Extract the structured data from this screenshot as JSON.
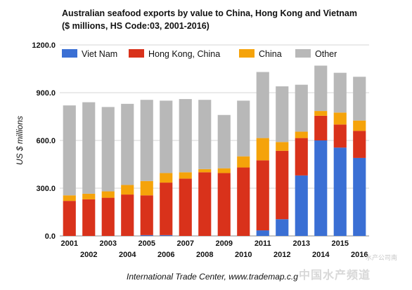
{
  "title": "Australian seafood exports by value to China, Hong Kong and Vietnam ($ millions, HS Code:03, 2001-2016)",
  "source": "International Trade Center, www.trademap.c.g",
  "watermark": "水产公司南",
  "watermark2": "中国水产频道",
  "chart_data": {
    "type": "bar",
    "stacked": true,
    "title": "Australian seafood exports by value to China, Hong Kong and Vietnam ($ millions, HS Code:03, 2001-2016)",
    "ylabel": "US $ millions",
    "xlabel": "",
    "ylim": [
      0,
      1200
    ],
    "yticks": [
      "0.0",
      "300.0",
      "600.0",
      "900.0",
      "1200.0"
    ],
    "grid": true,
    "legend_position": "top",
    "categories": [
      "2001",
      "2002",
      "2003",
      "2004",
      "2005",
      "2006",
      "2007",
      "2008",
      "2009",
      "2010",
      "2011",
      "2012",
      "2013",
      "2014",
      "2015",
      "2016"
    ],
    "series": [
      {
        "name": "Viet Nam",
        "color": "#3a6fd4",
        "values": [
          0,
          0,
          0,
          0,
          5,
          5,
          0,
          0,
          0,
          0,
          35,
          105,
          380,
          600,
          555,
          490
        ]
      },
      {
        "name": "Hong Kong, China",
        "color": "#d9321b",
        "values": [
          220,
          230,
          240,
          260,
          250,
          330,
          360,
          400,
          395,
          430,
          440,
          430,
          235,
          155,
          145,
          170
        ]
      },
      {
        "name": "China",
        "color": "#f5a30a",
        "values": [
          35,
          35,
          40,
          60,
          90,
          60,
          40,
          20,
          30,
          70,
          140,
          55,
          40,
          30,
          75,
          65
        ]
      },
      {
        "name": "Other",
        "color": "#b8b8b8",
        "values": [
          565,
          575,
          530,
          510,
          510,
          455,
          460,
          435,
          335,
          350,
          415,
          350,
          295,
          285,
          250,
          275
        ]
      }
    ]
  }
}
